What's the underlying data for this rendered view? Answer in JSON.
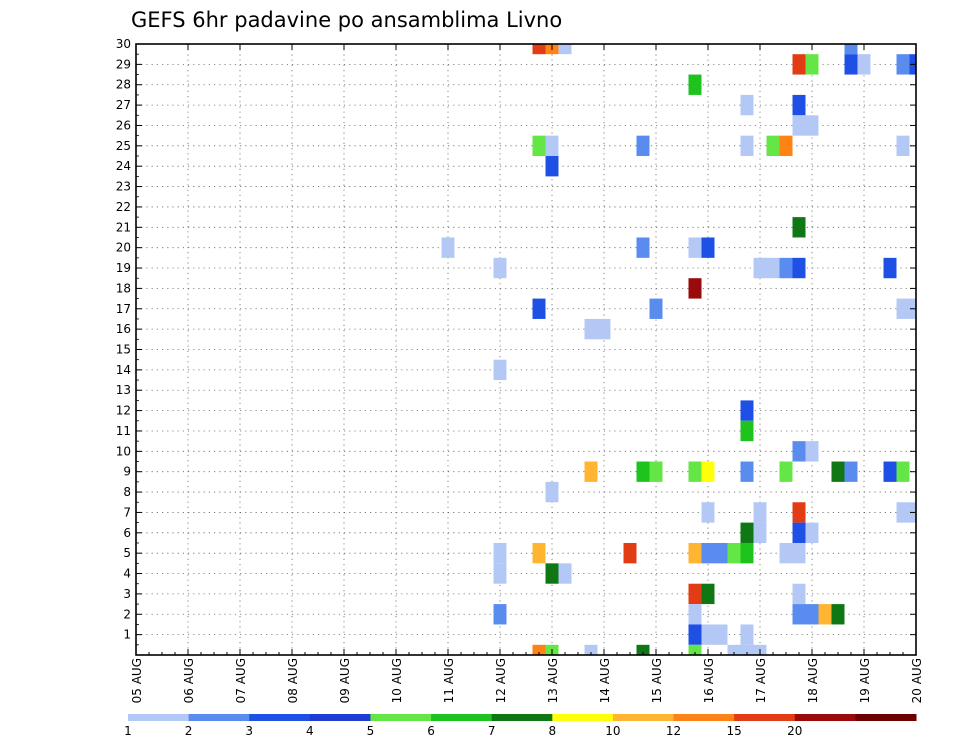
{
  "chart_data": {
    "type": "heatmap",
    "title": "GEFS 6hr padavine po ansamblima Livno",
    "x_tick_labels": [
      "05 AUG",
      "06 AUG",
      "07 AUG",
      "08 AUG",
      "09 AUG",
      "10 AUG",
      "11 AUG",
      "12 AUG",
      "13 AUG",
      "14 AUG",
      "15 AUG",
      "16 AUG",
      "17 AUG",
      "18 AUG",
      "19 AUG",
      "20 AUG"
    ],
    "y_tick_labels": [
      "1",
      "2",
      "3",
      "4",
      "5",
      "6",
      "7",
      "8",
      "9",
      "10",
      "11",
      "12",
      "13",
      "14",
      "15",
      "16",
      "17",
      "18",
      "19",
      "20",
      "21",
      "22",
      "23",
      "24",
      "25",
      "26",
      "27",
      "28",
      "29",
      "30"
    ],
    "x_unit": "6-hour step (index from 05 AUG 00Z)",
    "y_unit": "ensemble member (0 = control)",
    "xlim": [
      0,
      60
    ],
    "ylim": [
      0,
      30
    ],
    "legend": {
      "position": "bottom",
      "labels": [
        "1",
        "2",
        "3",
        "4",
        "5",
        "6",
        "7",
        "8",
        "10",
        "12",
        "15",
        "20"
      ],
      "colors": [
        "#b4c8f5",
        "#5a8cf0",
        "#1e50e6",
        "#1e3cd2",
        "#64e646",
        "#1ec31e",
        "#0f7814",
        "#ffff0a",
        "#ffb432",
        "#ff8214",
        "#e13c14",
        "#9b0a0a",
        "#6e0000"
      ]
    },
    "cells": [
      [
        31,
        30,
        "#e13c14"
      ],
      [
        32,
        30,
        "#ff8214"
      ],
      [
        33,
        30,
        "#b4c8f5"
      ],
      [
        55,
        30,
        "#5a8cf0"
      ],
      [
        51,
        29,
        "#e13c14"
      ],
      [
        52,
        29,
        "#64e646"
      ],
      [
        55,
        29,
        "#1e50e6"
      ],
      [
        56,
        29,
        "#b4c8f5"
      ],
      [
        59,
        29,
        "#5a8cf0"
      ],
      [
        60,
        29,
        "#1e50e6"
      ],
      [
        43,
        28,
        "#1ec31e"
      ],
      [
        47,
        27,
        "#b4c8f5"
      ],
      [
        51,
        27,
        "#1e50e6"
      ],
      [
        51,
        26,
        "#b4c8f5"
      ],
      [
        52,
        26,
        "#b4c8f5"
      ],
      [
        31,
        25,
        "#64e646"
      ],
      [
        32,
        25,
        "#b4c8f5"
      ],
      [
        39,
        25,
        "#5a8cf0"
      ],
      [
        47,
        25,
        "#b4c8f5"
      ],
      [
        49,
        25,
        "#64e646"
      ],
      [
        50,
        25,
        "#ff8214"
      ],
      [
        59,
        25,
        "#b4c8f5"
      ],
      [
        32,
        24,
        "#1e50e6"
      ],
      [
        51,
        21,
        "#0f7814"
      ],
      [
        24,
        20,
        "#b4c8f5"
      ],
      [
        39,
        20,
        "#5a8cf0"
      ],
      [
        43,
        20,
        "#b4c8f5"
      ],
      [
        44,
        20,
        "#1e50e6"
      ],
      [
        28,
        19,
        "#b4c8f5"
      ],
      [
        48,
        19,
        "#b4c8f5"
      ],
      [
        49,
        19,
        "#b4c8f5"
      ],
      [
        50,
        19,
        "#5a8cf0"
      ],
      [
        51,
        19,
        "#1e50e6"
      ],
      [
        58,
        19,
        "#1e50e6"
      ],
      [
        43,
        18,
        "#9b0a0a"
      ],
      [
        31,
        17,
        "#1e50e6"
      ],
      [
        40,
        17,
        "#5a8cf0"
      ],
      [
        59,
        17,
        "#b4c8f5"
      ],
      [
        60,
        17,
        "#b4c8f5"
      ],
      [
        35,
        16,
        "#b4c8f5"
      ],
      [
        36,
        16,
        "#b4c8f5"
      ],
      [
        28,
        14,
        "#b4c8f5"
      ],
      [
        47,
        12,
        "#1e50e6"
      ],
      [
        47,
        11,
        "#1ec31e"
      ],
      [
        51,
        10,
        "#5a8cf0"
      ],
      [
        52,
        10,
        "#b4c8f5"
      ],
      [
        35,
        9,
        "#ffb432"
      ],
      [
        39,
        9,
        "#1ec31e"
      ],
      [
        40,
        9,
        "#64e646"
      ],
      [
        43,
        9,
        "#64e646"
      ],
      [
        44,
        9,
        "#ffff0a"
      ],
      [
        47,
        9,
        "#5a8cf0"
      ],
      [
        50,
        9,
        "#64e646"
      ],
      [
        54,
        9,
        "#0f7814"
      ],
      [
        55,
        9,
        "#5a8cf0"
      ],
      [
        58,
        9,
        "#1e50e6"
      ],
      [
        59,
        9,
        "#64e646"
      ],
      [
        32,
        8,
        "#b4c8f5"
      ],
      [
        44,
        7,
        "#b4c8f5"
      ],
      [
        48,
        7,
        "#b4c8f5"
      ],
      [
        51,
        7,
        "#e13c14"
      ],
      [
        59,
        7,
        "#b4c8f5"
      ],
      [
        60,
        7,
        "#b4c8f5"
      ],
      [
        47,
        6,
        "#0f7814"
      ],
      [
        48,
        6,
        "#b4c8f5"
      ],
      [
        51,
        6,
        "#1e50e6"
      ],
      [
        52,
        6,
        "#b4c8f5"
      ],
      [
        28,
        5,
        "#b4c8f5"
      ],
      [
        31,
        5,
        "#ffb432"
      ],
      [
        38,
        5,
        "#e13c14"
      ],
      [
        43,
        5,
        "#ffb432"
      ],
      [
        44,
        5,
        "#5a8cf0"
      ],
      [
        45,
        5,
        "#5a8cf0"
      ],
      [
        46,
        5,
        "#64e646"
      ],
      [
        47,
        5,
        "#1ec31e"
      ],
      [
        50,
        5,
        "#b4c8f5"
      ],
      [
        51,
        5,
        "#b4c8f5"
      ],
      [
        28,
        4,
        "#b4c8f5"
      ],
      [
        32,
        4,
        "#0f7814"
      ],
      [
        33,
        4,
        "#b4c8f5"
      ],
      [
        43,
        3,
        "#e13c14"
      ],
      [
        44,
        3,
        "#0f7814"
      ],
      [
        51,
        3,
        "#b4c8f5"
      ],
      [
        28,
        2,
        "#5a8cf0"
      ],
      [
        43,
        2,
        "#b4c8f5"
      ],
      [
        51,
        2,
        "#5a8cf0"
      ],
      [
        52,
        2,
        "#5a8cf0"
      ],
      [
        53,
        2,
        "#ffb432"
      ],
      [
        54,
        2,
        "#0f7814"
      ],
      [
        43,
        1,
        "#1e50e6"
      ],
      [
        44,
        1,
        "#b4c8f5"
      ],
      [
        45,
        1,
        "#b4c8f5"
      ],
      [
        47,
        1,
        "#b4c8f5"
      ],
      [
        31,
        0,
        "#ff8214"
      ],
      [
        32,
        0,
        "#64e646"
      ],
      [
        35,
        0,
        "#b4c8f5"
      ],
      [
        39,
        0,
        "#0f7814"
      ],
      [
        43,
        0,
        "#64e646"
      ],
      [
        46,
        0,
        "#b4c8f5"
      ],
      [
        47,
        0,
        "#b4c8f5"
      ],
      [
        48,
        0,
        "#b4c8f5"
      ]
    ]
  }
}
